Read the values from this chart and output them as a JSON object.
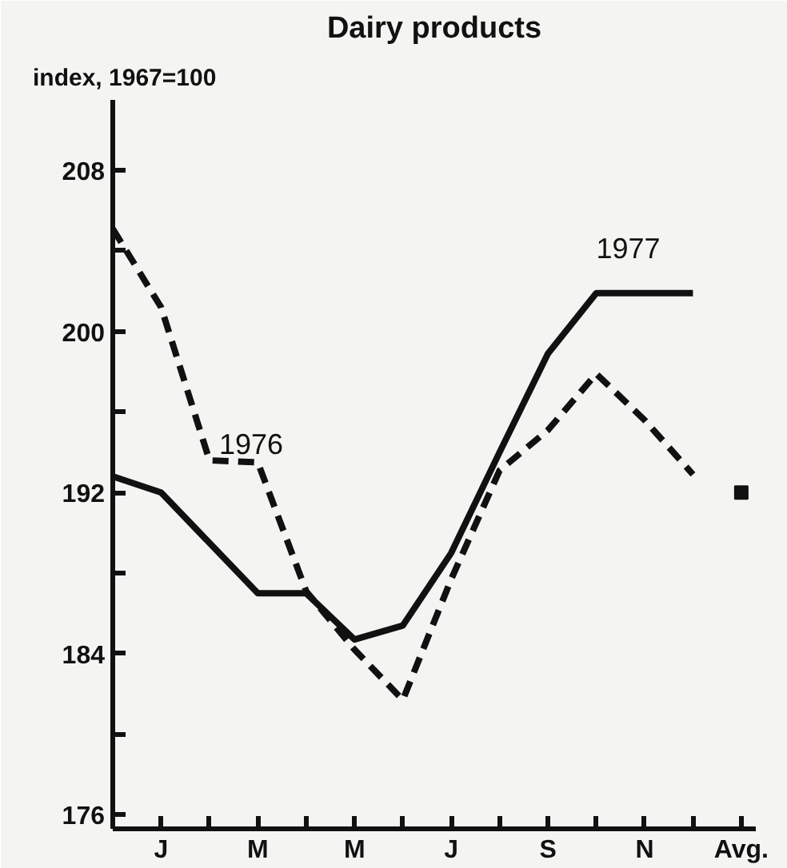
{
  "chart_data": {
    "type": "line",
    "title": "Dairy products",
    "ylabel": "index, 1967=100",
    "categories": [
      null,
      "J",
      null,
      "M",
      null,
      "M",
      null,
      "J",
      null,
      "S",
      null,
      "N",
      null,
      "Avg."
    ],
    "series": [
      {
        "name": "1977",
        "color": "#111111",
        "line_style": "solid",
        "values": [
          192.8,
          192.0,
          189.5,
          187.0,
          187.0,
          184.7,
          185.4,
          189.0,
          194.0,
          198.9,
          201.9,
          201.9,
          201.9,
          null
        ]
      },
      {
        "name": "1976",
        "color": "#111111",
        "line_style": "dashed",
        "values": [
          205.1,
          201.2,
          193.6,
          193.5,
          187.1,
          184.2,
          181.7,
          187.7,
          193.1,
          195.1,
          197.9,
          195.6,
          192.9,
          null
        ]
      },
      {
        "type": "scatter",
        "color": "#111111",
        "marker": "square",
        "values": [
          null,
          null,
          null,
          null,
          null,
          null,
          null,
          null,
          null,
          null,
          null,
          null,
          null,
          192.0
        ]
      }
    ],
    "ylim": [
      175.3,
      211.5
    ],
    "yticks": [
      176,
      {
        "value": 180,
        "label": null
      },
      184,
      {
        "value": 188,
        "label": null
      },
      192,
      {
        "value": 196,
        "label": null
      },
      200,
      {
        "value": 204,
        "label": null
      },
      208
    ],
    "grid": false,
    "legend": false,
    "marker": "none"
  }
}
